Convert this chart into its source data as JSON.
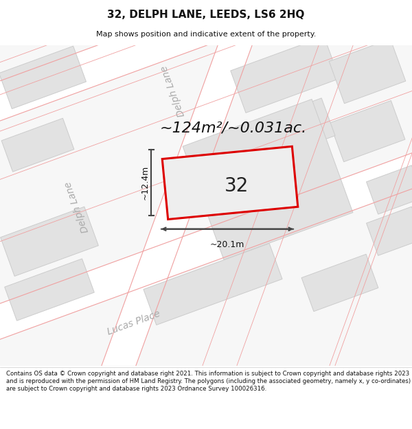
{
  "title": "32, DELPH LANE, LEEDS, LS6 2HQ",
  "subtitle": "Map shows position and indicative extent of the property.",
  "area_text": "~124m²/~0.031ac.",
  "property_number": "32",
  "width_label": "~20.1m",
  "height_label": "~12.4m",
  "footer_text": "Contains OS data © Crown copyright and database right 2021. This information is subject to Crown copyright and database rights 2023 and is reproduced with the permission of HM Land Registry. The polygons (including the associated geometry, namely x, y co-ordinates) are subject to Crown copyright and database rights 2023 Ordnance Survey 100026316.",
  "title_fontsize": 11,
  "subtitle_fontsize": 8,
  "area_fontsize": 16,
  "number_fontsize": 20,
  "label_fontsize": 9,
  "street_fontsize": 10,
  "footer_fontsize": 6.2,
  "map_bg": "#f7f7f7",
  "road_bg": "#ffffff",
  "building_color": "#e2e2e2",
  "building_edge": "#cccccc",
  "plot_fill": "#eeeeee",
  "plot_border": "#dd0000",
  "road_line_color": "#f0a0a0",
  "street_label_color": "#aaaaaa",
  "dim_color": "#444444",
  "text_color": "#111111"
}
